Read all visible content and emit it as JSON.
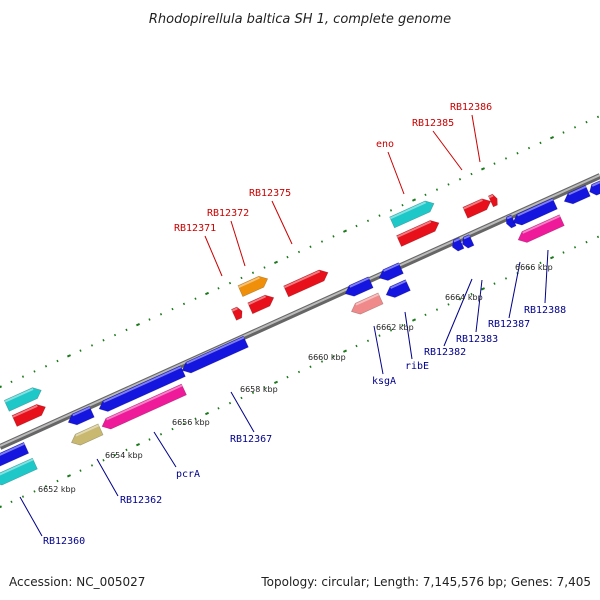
{
  "title": "Rhodopirellula baltica SH 1, complete genome",
  "footer": {
    "accession": "Accession: NC_005027",
    "summary": "Topology: circular; Length: 7,145,576 bp; Genes: 7,405"
  },
  "colors": {
    "forward_label": "#cc0000",
    "reverse_label": "#00008b",
    "backbone": "#888888",
    "tick": "#1a7a1a"
  },
  "ticks": [
    {
      "label": "6652 kbp"
    },
    {
      "label": "6654 kbp"
    },
    {
      "label": "6656 kbp"
    },
    {
      "label": "6658 kbp"
    },
    {
      "label": "6660 kbp"
    },
    {
      "label": "6662 kbp"
    },
    {
      "label": "6664 kbp"
    },
    {
      "label": "6666 kbp"
    }
  ],
  "labels": {
    "forward": [
      "RB12371",
      "RB12372",
      "RB12375",
      "eno",
      "RB12385",
      "RB12386"
    ],
    "reverse": [
      "RB12360",
      "RB12362",
      "pcrA",
      "RB12367",
      "ksgA",
      "ribE",
      "RB12382",
      "RB12383",
      "RB12387",
      "RB12388"
    ]
  }
}
